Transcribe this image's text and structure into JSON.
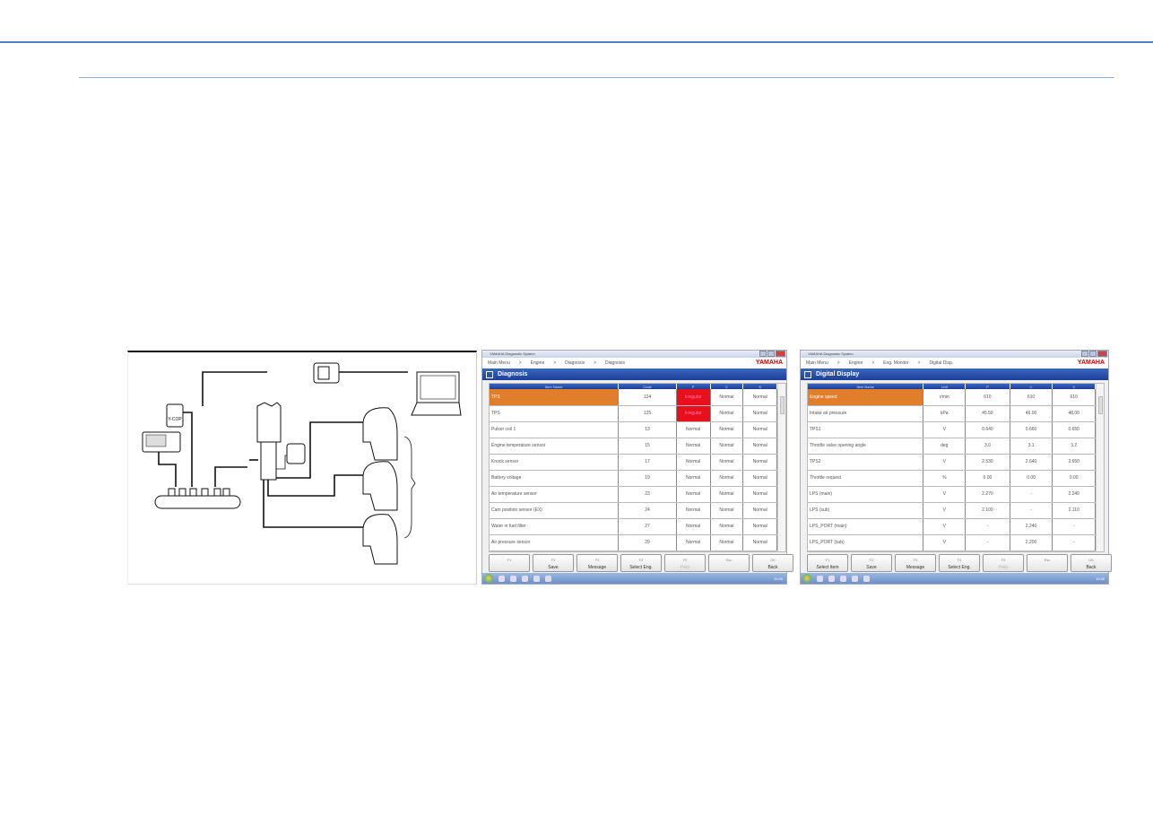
{
  "diagram": {
    "ycop_label": "Y-COP"
  },
  "diagnosis": {
    "window_title": "YAMAHA Diagnostic System",
    "breadcrumb": [
      "Main Menu",
      ">",
      "Engine",
      ">",
      "Diagnosis",
      ">",
      "Diagnosis"
    ],
    "brand": "YAMAHA",
    "header": "Diagnosis",
    "columns": [
      "Item Name",
      "Code",
      "P",
      "C",
      "S"
    ],
    "rows": [
      [
        "TPS",
        "124",
        "Irregular",
        "Normal",
        "Normal"
      ],
      [
        "TPS",
        "125",
        "Irregular",
        "Normal",
        "Normal"
      ],
      [
        "Pulser coil 1",
        "13",
        "Normal",
        "Normal",
        "Normal"
      ],
      [
        "Engine temperature sensor",
        "15",
        "Normal",
        "Normal",
        "Normal"
      ],
      [
        "Knock sensor",
        "17",
        "Normal",
        "Normal",
        "Normal"
      ],
      [
        "Battery voltage",
        "19",
        "Normal",
        "Normal",
        "Normal"
      ],
      [
        "Air temperature sensor",
        "23",
        "Normal",
        "Normal",
        "Normal"
      ],
      [
        "Cam position sensor (EX)",
        "24",
        "Normal",
        "Normal",
        "Normal"
      ],
      [
        "Water in fuel filter",
        "27",
        "Normal",
        "Normal",
        "Normal"
      ],
      [
        "Air pressure sensor",
        "29",
        "Normal",
        "Normal",
        "Normal"
      ]
    ],
    "buttons": [
      {
        "key": "F1",
        "label": "",
        "disabled": true
      },
      {
        "key": "F2",
        "label": "Save"
      },
      {
        "key": "F3",
        "label": "Message"
      },
      {
        "key": "F4",
        "label": "Select Eng."
      },
      {
        "key": "F5",
        "label": "Help",
        "disabled": true
      },
      {
        "key": "Esc",
        "label": "",
        "disabled": true
      },
      {
        "key": "OK",
        "label": "Back"
      }
    ],
    "clock": "10:45"
  },
  "digital": {
    "window_title": "YAMAHA Diagnostic System",
    "breadcrumb": [
      "Main Menu",
      ">",
      "Engine",
      ">",
      "Eng. Monitor",
      ">",
      "Digital Disp."
    ],
    "brand": "YAMAHA",
    "header": "Digital Display",
    "columns": [
      "Item Name",
      "Unit",
      "P",
      "C",
      "S"
    ],
    "rows": [
      [
        "Engine speed",
        "r/min",
        "610",
        "610",
        "610"
      ],
      [
        "Intake air pressure",
        "kPa",
        "45.50",
        "46.00",
        "48.00"
      ],
      [
        "TPS1",
        "V",
        "0.640",
        "0.660",
        "0.650"
      ],
      [
        "Throttle valve opening angle",
        "deg",
        "3.0",
        "3.1",
        "3.2"
      ],
      [
        "TPS2",
        "V",
        "2.530",
        "2.640",
        "2.650"
      ],
      [
        "Throttle request",
        "%",
        "0.00",
        "0.00",
        "0.00"
      ],
      [
        "LPS (main)",
        "V",
        "2.270",
        "-",
        "2.240"
      ],
      [
        "LPS (sub)",
        "V",
        "2.100",
        "-",
        "2.110"
      ],
      [
        "LPS_PORT (main)",
        "V",
        "-",
        "2.240",
        "-"
      ],
      [
        "LPS_PORT (sub)",
        "V",
        "-",
        "2.200",
        "-"
      ]
    ],
    "buttons": [
      {
        "key": "F1",
        "label": "Select Item"
      },
      {
        "key": "F2",
        "label": "Save"
      },
      {
        "key": "F3",
        "label": "Message"
      },
      {
        "key": "F4",
        "label": "Select Eng."
      },
      {
        "key": "F5",
        "label": "Help",
        "disabled": true
      },
      {
        "key": "Esc",
        "label": "",
        "disabled": true
      },
      {
        "key": "OK",
        "label": "Back"
      }
    ],
    "clock": "10:45"
  },
  "colors": {
    "selected": "#e07e2c",
    "irregular": "#e8101c",
    "header": "#1c3f98",
    "rule": "#4f7fbf"
  }
}
